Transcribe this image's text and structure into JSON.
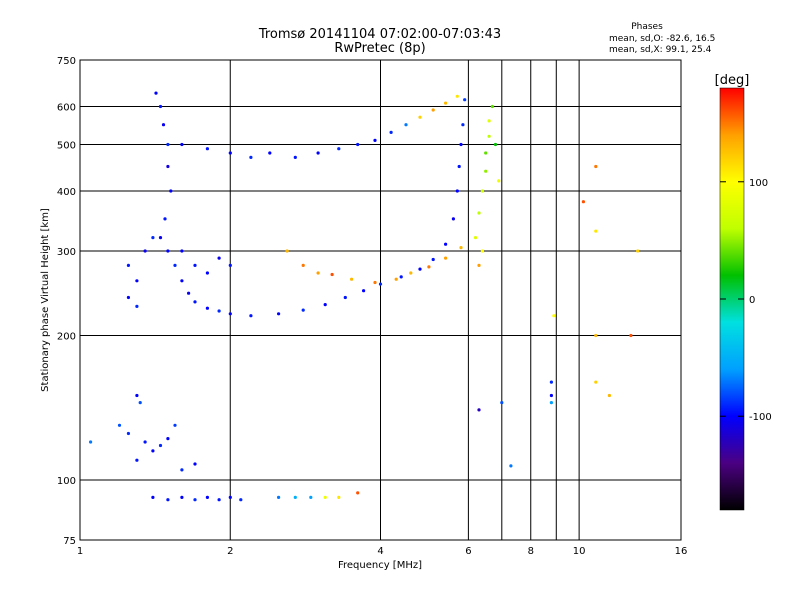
{
  "chart_data": {
    "type": "scatter",
    "title": "Tromsø 20141104 07:02:00-07:03:43",
    "subtitle": "RwPretec (8p)",
    "xlabel": "Frequency [MHz]",
    "ylabel": "Stationary phase Virtual Height [km]",
    "x_scale": "log",
    "y_scale": "log",
    "xlim": [
      1,
      16
    ],
    "ylim": [
      75,
      750
    ],
    "x_ticks": [
      "1",
      "2",
      "4",
      "6",
      "8",
      "10",
      "16"
    ],
    "x_tick_values": [
      1,
      2,
      4,
      6,
      8,
      10,
      16
    ],
    "x_grid_values": [
      2,
      4,
      6,
      7,
      8,
      9,
      10
    ],
    "y_ticks": [
      "75",
      "100",
      "200",
      "300",
      "400",
      "500",
      "600",
      "750"
    ],
    "y_tick_values": [
      75,
      100,
      200,
      300,
      400,
      500,
      600,
      750
    ],
    "y_grid_values": [
      100,
      200,
      300,
      400,
      500,
      600
    ],
    "grid": true,
    "stats": {
      "heading": "Phases",
      "line_o": "mean, sd,O: -82.6, 16.5",
      "line_x": "mean, sd,X:  99.1, 25.4"
    },
    "colorbar": {
      "label": "[deg]",
      "range": [
        -180,
        180
      ],
      "ticks": [
        "100",
        "0",
        "-100"
      ],
      "tick_values": [
        100,
        0,
        -100
      ],
      "colors": [
        "#000000",
        "#4b0082",
        "#0000ff",
        "#00a0ff",
        "#00e0e0",
        "#00c000",
        "#c0ff00",
        "#ffff00",
        "#ffa000",
        "#ff0000"
      ]
    },
    "series": [
      {
        "points": [
          [
            1.42,
            640,
            -100
          ],
          [
            1.45,
            600,
            -95
          ],
          [
            1.47,
            550,
            -105
          ],
          [
            1.5,
            500,
            -90
          ],
          [
            1.5,
            450,
            -110
          ],
          [
            1.52,
            400,
            -100
          ],
          [
            1.48,
            350,
            -95
          ],
          [
            1.45,
            320,
            -105
          ],
          [
            1.5,
            300,
            -100
          ],
          [
            1.55,
            280,
            -90
          ],
          [
            1.6,
            260,
            -100
          ],
          [
            1.65,
            245,
            -105
          ],
          [
            1.7,
            235,
            -95
          ],
          [
            1.8,
            228,
            -100
          ],
          [
            1.9,
            225,
            -90
          ],
          [
            2.0,
            222,
            -100
          ],
          [
            2.2,
            220,
            -95
          ],
          [
            2.5,
            222,
            -100
          ],
          [
            2.8,
            226,
            -90
          ],
          [
            3.1,
            232,
            -100
          ],
          [
            3.4,
            240,
            -95
          ],
          [
            3.7,
            248,
            -100
          ],
          [
            4.0,
            256,
            -90
          ],
          [
            4.4,
            265,
            -95
          ],
          [
            4.8,
            275,
            -100
          ],
          [
            5.1,
            288,
            -95
          ],
          [
            5.4,
            310,
            -100
          ],
          [
            5.6,
            350,
            -105
          ],
          [
            5.7,
            400,
            -100
          ],
          [
            5.75,
            450,
            -95
          ],
          [
            5.8,
            500,
            -100
          ],
          [
            5.85,
            550,
            -90
          ],
          [
            5.9,
            620,
            -85
          ]
        ]
      },
      {
        "points": [
          [
            1.25,
            280,
            -95
          ],
          [
            1.3,
            260,
            -100
          ],
          [
            1.35,
            300,
            -105
          ],
          [
            1.4,
            320,
            -90
          ],
          [
            1.6,
            300,
            -100
          ],
          [
            1.7,
            280,
            -95
          ],
          [
            1.8,
            270,
            -100
          ],
          [
            1.9,
            290,
            -105
          ],
          [
            2.0,
            280,
            -95
          ],
          [
            1.25,
            240,
            -100
          ],
          [
            1.3,
            230,
            -90
          ]
        ]
      },
      {
        "points": [
          [
            1.6,
            500,
            -100
          ],
          [
            1.8,
            490,
            -95
          ],
          [
            2.0,
            480,
            -100
          ],
          [
            2.2,
            470,
            -90
          ],
          [
            2.4,
            480,
            -100
          ],
          [
            2.7,
            470,
            -95
          ],
          [
            3.0,
            480,
            -100
          ],
          [
            3.3,
            490,
            -90
          ],
          [
            3.6,
            500,
            -95
          ],
          [
            3.9,
            510,
            -100
          ],
          [
            4.2,
            530,
            -90
          ],
          [
            4.5,
            550,
            -70
          ],
          [
            4.8,
            570,
            120
          ],
          [
            5.1,
            590,
            140
          ],
          [
            5.4,
            610,
            130
          ],
          [
            5.7,
            630,
            110
          ]
        ]
      },
      {
        "points": [
          [
            6.2,
            320,
            80
          ],
          [
            6.3,
            360,
            60
          ],
          [
            6.4,
            400,
            70
          ],
          [
            6.5,
            440,
            50
          ],
          [
            6.5,
            480,
            40
          ],
          [
            6.6,
            520,
            60
          ],
          [
            6.6,
            560,
            80
          ],
          [
            6.7,
            600,
            40
          ],
          [
            6.8,
            500,
            20
          ],
          [
            6.9,
            420,
            90
          ],
          [
            6.4,
            300,
            100
          ],
          [
            6.3,
            280,
            140
          ]
        ]
      },
      {
        "points": [
          [
            2.6,
            300,
            130
          ],
          [
            2.8,
            280,
            150
          ],
          [
            3.0,
            270,
            140
          ],
          [
            3.2,
            268,
            160
          ],
          [
            3.5,
            262,
            130
          ],
          [
            3.9,
            258,
            150
          ],
          [
            4.3,
            262,
            140
          ],
          [
            4.6,
            270,
            130
          ],
          [
            5.0,
            278,
            150
          ],
          [
            5.4,
            290,
            140
          ],
          [
            5.8,
            305,
            130
          ]
        ]
      },
      {
        "points": [
          [
            1.2,
            130,
            -80
          ],
          [
            1.25,
            125,
            -90
          ],
          [
            1.3,
            150,
            -100
          ],
          [
            1.32,
            145,
            -80
          ],
          [
            1.35,
            120,
            -95
          ],
          [
            1.4,
            115,
            -100
          ],
          [
            1.45,
            118,
            -90
          ],
          [
            1.5,
            122,
            -100
          ],
          [
            1.55,
            130,
            -85
          ],
          [
            1.3,
            110,
            -95
          ],
          [
            1.6,
            105,
            -90
          ],
          [
            1.7,
            108,
            -100
          ],
          [
            1.05,
            120,
            -70
          ]
        ]
      },
      {
        "points": [
          [
            1.4,
            92,
            -100
          ],
          [
            1.5,
            91,
            -95
          ],
          [
            1.6,
            92,
            -100
          ],
          [
            1.7,
            91,
            -90
          ],
          [
            1.8,
            92,
            -100
          ],
          [
            1.9,
            91,
            -95
          ],
          [
            2.0,
            92,
            -100
          ],
          [
            2.1,
            91,
            -90
          ],
          [
            2.5,
            92,
            -70
          ],
          [
            2.7,
            92,
            -50
          ],
          [
            2.9,
            92,
            -60
          ],
          [
            3.1,
            92,
            90
          ],
          [
            3.3,
            92,
            110
          ],
          [
            3.6,
            94,
            160
          ]
        ]
      },
      {
        "points": [
          [
            6.3,
            140,
            -120
          ],
          [
            7.0,
            145,
            -80
          ],
          [
            7.3,
            107,
            -70
          ],
          [
            8.8,
            160,
            -90
          ],
          [
            8.8,
            150,
            -100
          ],
          [
            8.8,
            145,
            -60
          ],
          [
            8.9,
            220,
            100
          ],
          [
            10.2,
            380,
            160
          ],
          [
            10.8,
            450,
            150
          ],
          [
            10.8,
            330,
            110
          ],
          [
            10.8,
            200,
            130
          ],
          [
            10.8,
            160,
            120
          ],
          [
            11.5,
            150,
            130
          ],
          [
            12.7,
            200,
            160
          ],
          [
            13.1,
            300,
            120
          ]
        ]
      }
    ]
  }
}
